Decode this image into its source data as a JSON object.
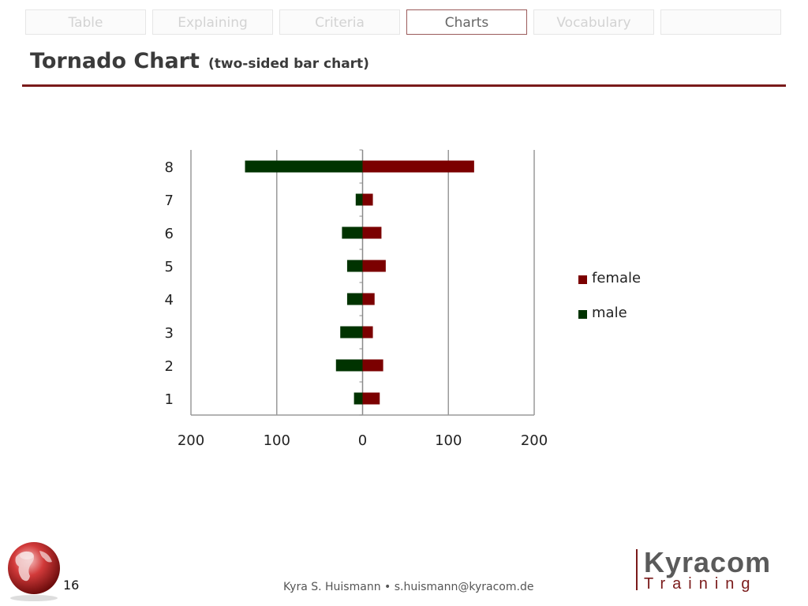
{
  "tabs": [
    {
      "label": "Table",
      "active": false
    },
    {
      "label": "Explaining",
      "active": false
    },
    {
      "label": "Criteria",
      "active": false
    },
    {
      "label": "Charts",
      "active": true
    },
    {
      "label": "Vocabulary",
      "active": false
    },
    {
      "label": "",
      "active": false
    }
  ],
  "title": {
    "main": "Tornado Chart",
    "sub": "(two-sided bar chart)"
  },
  "chart_data": {
    "type": "bar",
    "orientation": "horizontal",
    "layout": "tornado",
    "categories": [
      "1",
      "2",
      "3",
      "4",
      "5",
      "6",
      "7",
      "8"
    ],
    "series": [
      {
        "name": "female",
        "color": "#7b0000",
        "side": "right",
        "values": [
          20,
          24,
          12,
          14,
          27,
          22,
          12,
          130
        ]
      },
      {
        "name": "male",
        "color": "#003300",
        "side": "left",
        "values": [
          10,
          31,
          26,
          18,
          18,
          24,
          8,
          137
        ]
      }
    ],
    "xlim": [
      -200,
      200
    ],
    "xticks": [
      -200,
      -100,
      0,
      100,
      200
    ],
    "xtick_labels": [
      "200",
      "100",
      "0",
      "100",
      "200"
    ],
    "xlabel": "",
    "ylabel": "",
    "grid": true,
    "legend_position": "right"
  },
  "footer": {
    "page_number": "16",
    "author": "Kyra S. Huismann • s.huismann@kyracom.de"
  },
  "logo": {
    "top": "Kyracom",
    "bottom": "Training"
  },
  "colors": {
    "accent": "#7a1a1a",
    "female": "#7b0000",
    "male": "#003300"
  }
}
